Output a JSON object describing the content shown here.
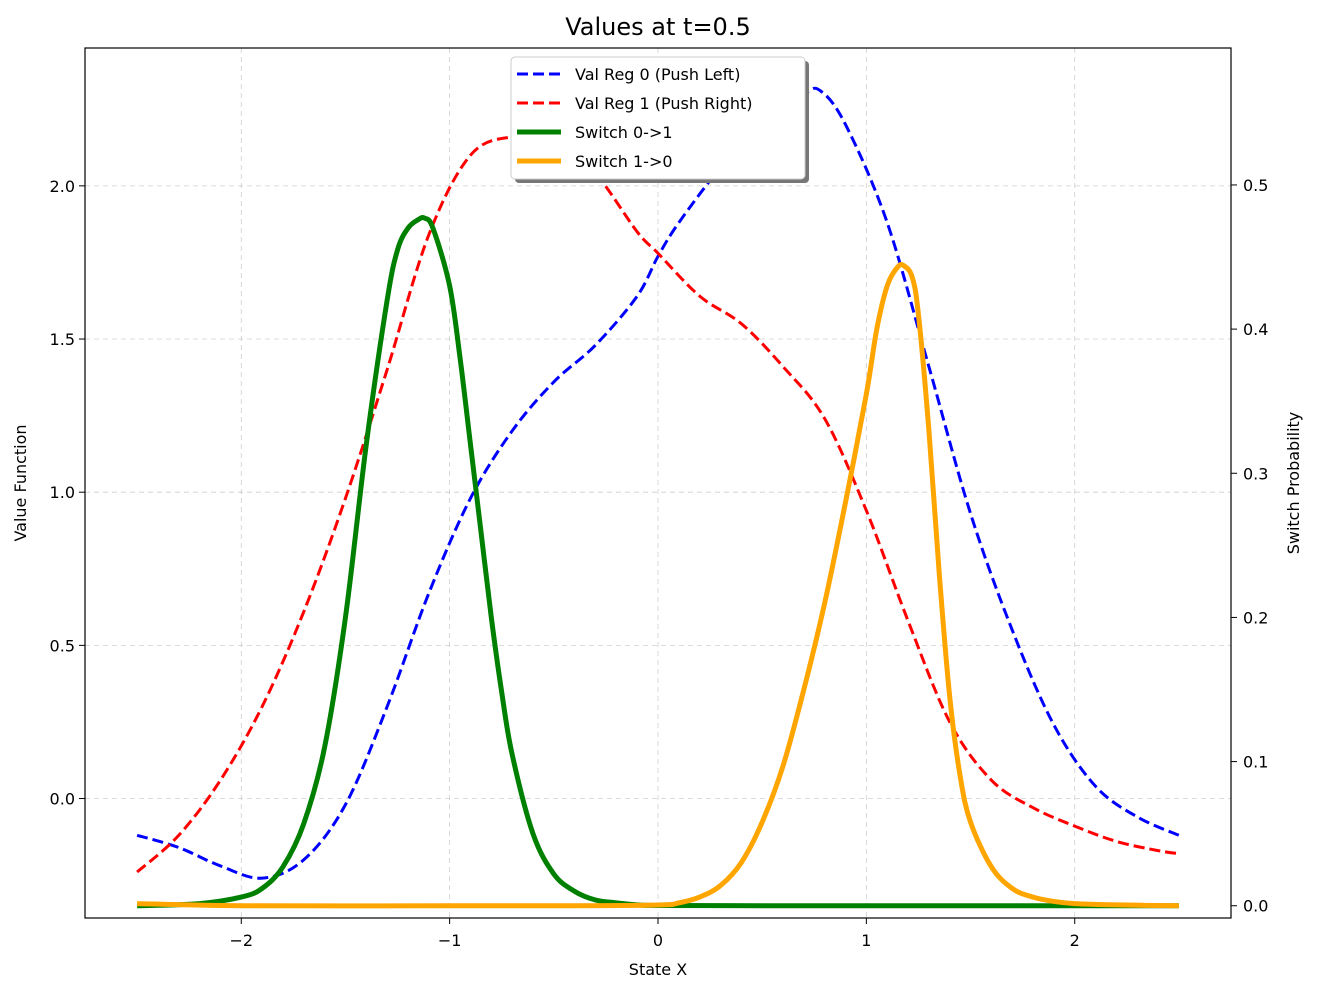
{
  "chart_data": {
    "type": "line",
    "title": "Values at t=0.5",
    "xlabel": "State X",
    "ylabel": "Value Function",
    "y2label": "Switch Probability",
    "xlim": [
      -2.75,
      2.75
    ],
    "ylim": [
      -0.39,
      2.45
    ],
    "y2lim": [
      -0.0085,
      0.595
    ],
    "xticks": [
      -2,
      -1,
      0,
      1,
      2
    ],
    "xtick_labels": [
      "−2",
      "−1",
      "0",
      "1",
      "2"
    ],
    "yticks": [
      0.0,
      0.5,
      1.0,
      1.5,
      2.0
    ],
    "ytick_labels": [
      "0.0",
      "0.5",
      "1.0",
      "1.5",
      "2.0"
    ],
    "y2ticks": [
      0.0,
      0.1,
      0.2,
      0.3,
      0.4,
      0.5
    ],
    "y2tick_labels": [
      "0.0",
      "0.1",
      "0.2",
      "0.3",
      "0.4",
      "0.5"
    ],
    "grid": true,
    "legend_position": "upper center",
    "series": [
      {
        "name": "Val Reg 0 (Push Left)",
        "axis": "left",
        "color": "#0000ff",
        "style": "dashed",
        "x": [
          -2.5,
          -2.3,
          -2.1,
          -1.9,
          -1.7,
          -1.5,
          -1.3,
          -1.1,
          -0.9,
          -0.7,
          -0.5,
          -0.3,
          -0.1,
          0.0,
          0.1,
          0.3,
          0.5,
          0.7,
          0.78,
          0.9,
          1.1,
          1.3,
          1.5,
          1.7,
          1.9,
          2.1,
          2.3,
          2.5
        ],
        "y": [
          -0.12,
          -0.16,
          -0.22,
          -0.26,
          -0.2,
          -0.02,
          0.3,
          0.67,
          0.98,
          1.2,
          1.36,
          1.48,
          1.64,
          1.77,
          1.88,
          2.06,
          2.21,
          2.3,
          2.31,
          2.2,
          1.88,
          1.41,
          0.93,
          0.55,
          0.24,
          0.04,
          -0.06,
          -0.12
        ]
      },
      {
        "name": "Val Reg 1 (Push Right)",
        "axis": "left",
        "color": "#ff0000",
        "style": "dashed",
        "x": [
          -2.5,
          -2.3,
          -2.1,
          -1.9,
          -1.7,
          -1.5,
          -1.3,
          -1.1,
          -0.9,
          -0.7,
          -0.5,
          -0.3,
          -0.1,
          0.0,
          0.2,
          0.4,
          0.6,
          0.8,
          1.0,
          1.2,
          1.4,
          1.6,
          1.8,
          2.0,
          2.2,
          2.4,
          2.5
        ],
        "y": [
          -0.24,
          -0.12,
          0.06,
          0.3,
          0.61,
          0.98,
          1.4,
          1.84,
          2.1,
          2.16,
          2.15,
          2.04,
          1.85,
          1.78,
          1.64,
          1.55,
          1.41,
          1.24,
          0.94,
          0.58,
          0.25,
          0.06,
          -0.03,
          -0.09,
          -0.14,
          -0.17,
          -0.18
        ]
      },
      {
        "name": "Switch 0->1",
        "axis": "right",
        "color": "#008000",
        "style": "solid",
        "x": [
          -2.5,
          -2.2,
          -2.0,
          -1.9,
          -1.8,
          -1.7,
          -1.6,
          -1.5,
          -1.4,
          -1.3,
          -1.25,
          -1.2,
          -1.15,
          -1.12,
          -1.08,
          -1.0,
          -0.95,
          -0.9,
          -0.85,
          -0.8,
          -0.75,
          -0.7,
          -0.6,
          -0.5,
          -0.4,
          -0.3,
          -0.2,
          -0.1,
          0.0,
          0.5,
          1.0,
          1.5,
          2.0,
          2.5
        ],
        "y": [
          0.0,
          0.0015,
          0.006,
          0.012,
          0.027,
          0.057,
          0.11,
          0.2,
          0.32,
          0.42,
          0.455,
          0.47,
          0.476,
          0.477,
          0.47,
          0.43,
          0.38,
          0.32,
          0.26,
          0.2,
          0.148,
          0.105,
          0.05,
          0.022,
          0.01,
          0.004,
          0.002,
          0.0006,
          0.0002,
          0.0,
          0.0,
          0.0,
          0.0,
          0.0
        ]
      },
      {
        "name": "Switch 1->0",
        "axis": "right",
        "color": "#ffa500",
        "style": "solid",
        "x": [
          -2.5,
          -2.0,
          -1.0,
          -0.5,
          0.0,
          0.1,
          0.2,
          0.3,
          0.4,
          0.5,
          0.6,
          0.7,
          0.8,
          0.9,
          1.0,
          1.05,
          1.1,
          1.15,
          1.18,
          1.22,
          1.25,
          1.3,
          1.35,
          1.4,
          1.45,
          1.5,
          1.6,
          1.7,
          1.8,
          1.9,
          2.0,
          2.2,
          2.5
        ],
        "y": [
          0.0015,
          0.0,
          0.0,
          0.0,
          0.0005,
          0.002,
          0.006,
          0.014,
          0.03,
          0.058,
          0.097,
          0.15,
          0.21,
          0.28,
          0.355,
          0.4,
          0.43,
          0.443,
          0.444,
          0.436,
          0.41,
          0.33,
          0.23,
          0.145,
          0.09,
          0.058,
          0.027,
          0.012,
          0.006,
          0.003,
          0.0015,
          0.0006,
          0.0
        ]
      }
    ]
  }
}
